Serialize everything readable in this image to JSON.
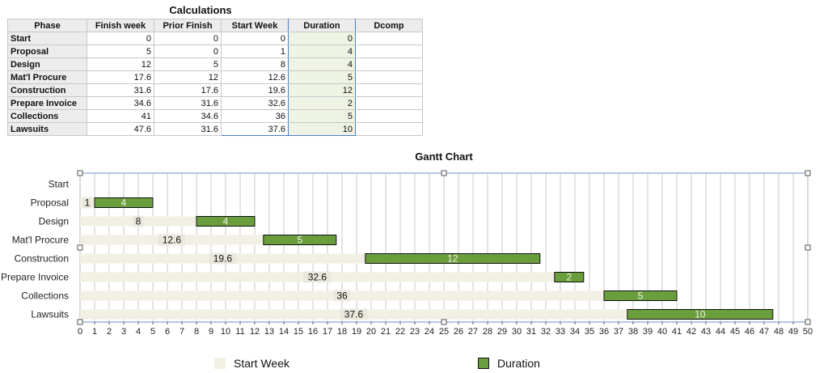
{
  "calculations": {
    "title": "Calculations",
    "headers": [
      "Phase",
      "Finish week",
      "Prior Finish",
      "Start Week",
      "Duration",
      "Dcomp"
    ],
    "rows": [
      {
        "phase": "Start",
        "finish": "0",
        "prior": "0",
        "start": "0",
        "duration": "0",
        "dcomp": ""
      },
      {
        "phase": "Proposal",
        "finish": "5",
        "prior": "0",
        "start": "1",
        "duration": "4",
        "dcomp": ""
      },
      {
        "phase": "Design",
        "finish": "12",
        "prior": "5",
        "start": "8",
        "duration": "4",
        "dcomp": ""
      },
      {
        "phase": "Mat'l Procure",
        "finish": "17.6",
        "prior": "12",
        "start": "12.6",
        "duration": "5",
        "dcomp": ""
      },
      {
        "phase": "Construction",
        "finish": "31.6",
        "prior": "17.6",
        "start": "19.6",
        "duration": "12",
        "dcomp": ""
      },
      {
        "phase": "Prepare Invoice",
        "finish": "34.6",
        "prior": "31.6",
        "start": "32.6",
        "duration": "2",
        "dcomp": ""
      },
      {
        "phase": "Collections",
        "finish": "41",
        "prior": "34.6",
        "start": "36",
        "duration": "5",
        "dcomp": ""
      },
      {
        "phase": "Lawsuits",
        "finish": "47.6",
        "prior": "31.6",
        "start": "37.6",
        "duration": "10",
        "dcomp": ""
      }
    ]
  },
  "chart_data": {
    "type": "bar",
    "orientation": "horizontal",
    "stacked": true,
    "title": "Gantt Chart",
    "categories": [
      "Start",
      "Proposal",
      "Design",
      "Mat'l Procure",
      "Construction",
      "Prepare Invoice",
      "Collections",
      "Lawsuits"
    ],
    "series": [
      {
        "name": "Start Week",
        "values": [
          0,
          1,
          8,
          12.6,
          19.6,
          32.6,
          36,
          37.6
        ],
        "color": "#f2efe3"
      },
      {
        "name": "Duration",
        "values": [
          0,
          4,
          4,
          5,
          12,
          2,
          5,
          10
        ],
        "color": "#6a9e3c"
      }
    ],
    "xlim": [
      0,
      50
    ],
    "xticks": [
      0,
      1,
      2,
      3,
      4,
      5,
      6,
      7,
      8,
      9,
      10,
      11,
      12,
      13,
      14,
      15,
      16,
      17,
      18,
      19,
      20,
      21,
      22,
      23,
      24,
      25,
      26,
      27,
      28,
      29,
      30,
      31,
      32,
      33,
      34,
      35,
      36,
      37,
      38,
      39,
      40,
      41,
      42,
      43,
      44,
      45,
      46,
      47,
      48,
      49,
      50
    ],
    "grid": "vertical",
    "legend": "bottom",
    "data_labels": true
  }
}
